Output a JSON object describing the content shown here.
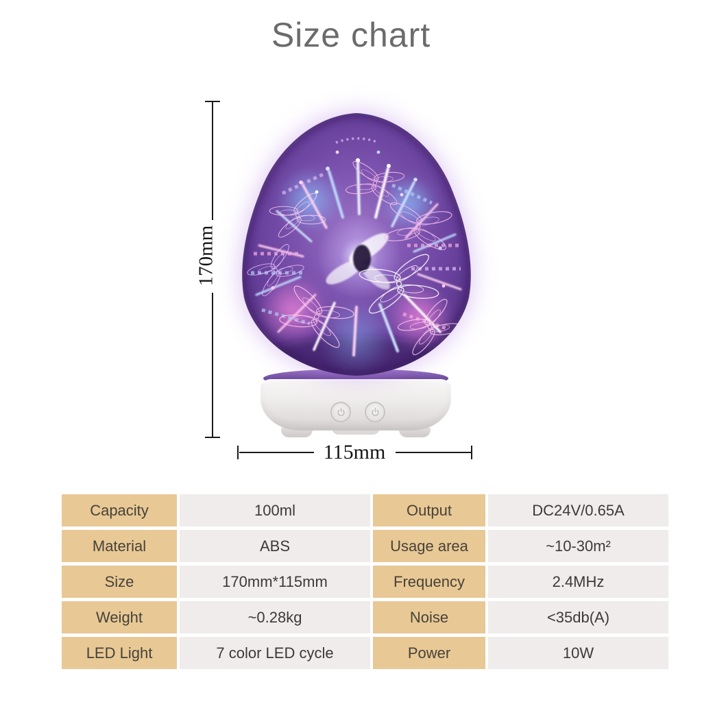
{
  "title": "Size chart",
  "dimensions": {
    "height_label": "170mm",
    "width_label": "115mm"
  },
  "spec_table": {
    "rows": [
      [
        "Capacity",
        "100ml",
        "Output",
        "DC24V/0.65A"
      ],
      [
        "Material",
        "ABS",
        "Usage area",
        "~10-30m²"
      ],
      [
        "Size",
        "170mm*115mm",
        "Frequency",
        "2.4MHz"
      ],
      [
        "Weight",
        "~0.28kg",
        "Noise",
        "<35db(A)"
      ],
      [
        "LED Light",
        "7 color LED cycle",
        "Power",
        "10W"
      ]
    ]
  },
  "colors": {
    "table_label_bg": "#e8c894",
    "table_value_bg": "#efeceb",
    "title_text": "#6b6b6b",
    "dimension_line": "#1a1a1a",
    "glass_purple": "#7a4fae"
  }
}
